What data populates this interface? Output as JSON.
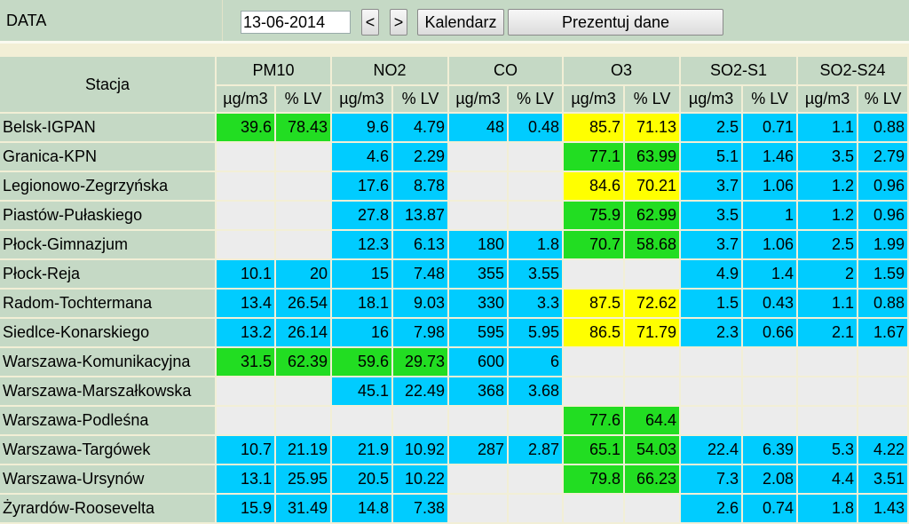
{
  "header": {
    "data_label": "DATA",
    "date_value": "13-06-2014",
    "prev_label": "<",
    "next_label": ">",
    "calendar_label": "Kalendarz",
    "present_label": "Prezentuj dane"
  },
  "table": {
    "station_header": "Stacja",
    "groups": [
      "PM10",
      "NO2",
      "CO",
      "O3",
      "SO2-S1",
      "SO2-S24"
    ],
    "unit_label": "µg/m3",
    "pct_label": "% LV",
    "colors": {
      "green": "#22dd22",
      "blue": "#00ccff",
      "yellow": "#ffff00",
      "empty": "#ececec",
      "header": "#c5d9c5"
    },
    "rows": [
      {
        "station": "Belsk-IGPAN",
        "cells": [
          [
            "39.6",
            "78.43",
            "green"
          ],
          [
            "9.6",
            "4.79",
            "blue"
          ],
          [
            "48",
            "0.48",
            "blue"
          ],
          [
            "85.7",
            "71.13",
            "yellow"
          ],
          [
            "2.5",
            "0.71",
            "blue"
          ],
          [
            "1.1",
            "0.88",
            "blue"
          ]
        ]
      },
      {
        "station": "Granica-KPN",
        "cells": [
          [
            "",
            "",
            "empty"
          ],
          [
            "4.6",
            "2.29",
            "blue"
          ],
          [
            "",
            "",
            "empty"
          ],
          [
            "77.1",
            "63.99",
            "green"
          ],
          [
            "5.1",
            "1.46",
            "blue"
          ],
          [
            "3.5",
            "2.79",
            "blue"
          ]
        ]
      },
      {
        "station": "Legionowo-Zegrzyńska",
        "cells": [
          [
            "",
            "",
            "empty"
          ],
          [
            "17.6",
            "8.78",
            "blue"
          ],
          [
            "",
            "",
            "empty"
          ],
          [
            "84.6",
            "70.21",
            "yellow"
          ],
          [
            "3.7",
            "1.06",
            "blue"
          ],
          [
            "1.2",
            "0.96",
            "blue"
          ]
        ]
      },
      {
        "station": "Piastów-Pułaskiego",
        "cells": [
          [
            "",
            "",
            "empty"
          ],
          [
            "27.8",
            "13.87",
            "blue"
          ],
          [
            "",
            "",
            "empty"
          ],
          [
            "75.9",
            "62.99",
            "green"
          ],
          [
            "3.5",
            "1",
            "blue"
          ],
          [
            "1.2",
            "0.96",
            "blue"
          ]
        ]
      },
      {
        "station": "Płock-Gimnazjum",
        "cells": [
          [
            "",
            "",
            "empty"
          ],
          [
            "12.3",
            "6.13",
            "blue"
          ],
          [
            "180",
            "1.8",
            "blue"
          ],
          [
            "70.7",
            "58.68",
            "green"
          ],
          [
            "3.7",
            "1.06",
            "blue"
          ],
          [
            "2.5",
            "1.99",
            "blue"
          ]
        ]
      },
      {
        "station": "Płock-Reja",
        "cells": [
          [
            "10.1",
            "20",
            "blue"
          ],
          [
            "15",
            "7.48",
            "blue"
          ],
          [
            "355",
            "3.55",
            "blue"
          ],
          [
            "",
            "",
            "empty"
          ],
          [
            "4.9",
            "1.4",
            "blue"
          ],
          [
            "2",
            "1.59",
            "blue"
          ]
        ]
      },
      {
        "station": "Radom-Tochtermana",
        "cells": [
          [
            "13.4",
            "26.54",
            "blue"
          ],
          [
            "18.1",
            "9.03",
            "blue"
          ],
          [
            "330",
            "3.3",
            "blue"
          ],
          [
            "87.5",
            "72.62",
            "yellow"
          ],
          [
            "1.5",
            "0.43",
            "blue"
          ],
          [
            "1.1",
            "0.88",
            "blue"
          ]
        ]
      },
      {
        "station": "Siedlce-Konarskiego",
        "cells": [
          [
            "13.2",
            "26.14",
            "blue"
          ],
          [
            "16",
            "7.98",
            "blue"
          ],
          [
            "595",
            "5.95",
            "blue"
          ],
          [
            "86.5",
            "71.79",
            "yellow"
          ],
          [
            "2.3",
            "0.66",
            "blue"
          ],
          [
            "2.1",
            "1.67",
            "blue"
          ]
        ]
      },
      {
        "station": "Warszawa-Komunikacyjna",
        "cells": [
          [
            "31.5",
            "62.39",
            "green"
          ],
          [
            "59.6",
            "29.73",
            "green"
          ],
          [
            "600",
            "6",
            "blue"
          ],
          [
            "",
            "",
            "empty"
          ],
          [
            "",
            "",
            "empty"
          ],
          [
            "",
            "",
            "empty"
          ]
        ]
      },
      {
        "station": "Warszawa-Marszałkowska",
        "cells": [
          [
            "",
            "",
            "empty"
          ],
          [
            "45.1",
            "22.49",
            "blue"
          ],
          [
            "368",
            "3.68",
            "blue"
          ],
          [
            "",
            "",
            "empty"
          ],
          [
            "",
            "",
            "empty"
          ],
          [
            "",
            "",
            "empty"
          ]
        ]
      },
      {
        "station": "Warszawa-Podleśna",
        "cells": [
          [
            "",
            "",
            "empty"
          ],
          [
            "",
            "",
            "empty"
          ],
          [
            "",
            "",
            "empty"
          ],
          [
            "77.6",
            "64.4",
            "green"
          ],
          [
            "",
            "",
            "empty"
          ],
          [
            "",
            "",
            "empty"
          ]
        ]
      },
      {
        "station": "Warszawa-Targówek",
        "cells": [
          [
            "10.7",
            "21.19",
            "blue"
          ],
          [
            "21.9",
            "10.92",
            "blue"
          ],
          [
            "287",
            "2.87",
            "blue"
          ],
          [
            "65.1",
            "54.03",
            "green"
          ],
          [
            "22.4",
            "6.39",
            "blue"
          ],
          [
            "5.3",
            "4.22",
            "blue"
          ]
        ]
      },
      {
        "station": "Warszawa-Ursynów",
        "cells": [
          [
            "13.1",
            "25.95",
            "blue"
          ],
          [
            "20.5",
            "10.22",
            "blue"
          ],
          [
            "",
            "",
            "empty"
          ],
          [
            "79.8",
            "66.23",
            "green"
          ],
          [
            "7.3",
            "2.08",
            "blue"
          ],
          [
            "4.4",
            "3.51",
            "blue"
          ]
        ]
      },
      {
        "station": "Żyrardów-Roosevelta",
        "cells": [
          [
            "15.9",
            "31.49",
            "blue"
          ],
          [
            "14.8",
            "7.38",
            "blue"
          ],
          [
            "",
            "",
            "empty"
          ],
          [
            "",
            "",
            "empty"
          ],
          [
            "2.6",
            "0.74",
            "blue"
          ],
          [
            "1.8",
            "1.43",
            "blue"
          ]
        ]
      }
    ]
  }
}
